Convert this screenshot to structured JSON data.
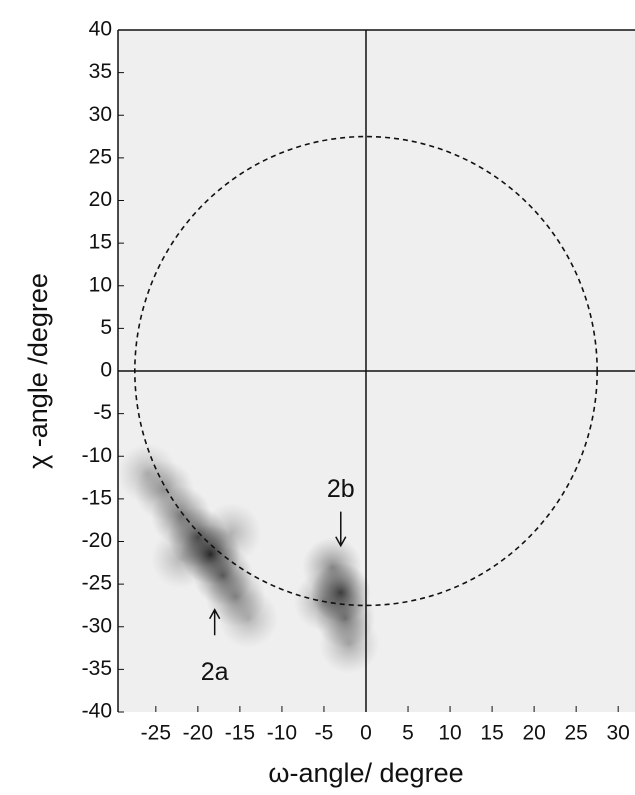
{
  "chart_data": {
    "type": "intensity_map",
    "xlabel": "ω-angle/ degree",
    "ylabel": "χ -angle /degree",
    "xlim": [
      -29.5,
      32
    ],
    "ylim": [
      -40,
      40
    ],
    "xticks": [
      -25,
      -20,
      -15,
      -10,
      -5,
      0,
      5,
      10,
      15,
      20,
      25,
      30
    ],
    "yticks": [
      -40,
      -35,
      -30,
      -25,
      -20,
      -15,
      -10,
      -5,
      0,
      5,
      10,
      15,
      20,
      25,
      30,
      35,
      40
    ],
    "circle_radius": 27.5,
    "spots": {
      "x": [
        -26,
        -24,
        -22,
        -20,
        -18.5,
        -17,
        -15.5,
        -14,
        -22,
        -16,
        -3,
        -2.5,
        -4,
        -2,
        -5
      ],
      "y": [
        -12,
        -14,
        -17,
        -19.5,
        -21.5,
        -24,
        -26.5,
        -29,
        -22,
        -19,
        -26,
        -29,
        -23,
        -32,
        -27
      ],
      "intensity": [
        0.3,
        0.45,
        0.6,
        0.8,
        1,
        0.7,
        0.5,
        0.3,
        0.3,
        0.3,
        0.9,
        0.6,
        0.5,
        0.35,
        0.4
      ]
    },
    "annotations": [
      {
        "text": "2a",
        "x": -18,
        "y": -35.5,
        "arrow": [
          -31,
          -28
        ]
      },
      {
        "text": "2b",
        "x": -3,
        "y": -14,
        "arrow": [
          -16.5,
          -20.5
        ]
      }
    ]
  }
}
